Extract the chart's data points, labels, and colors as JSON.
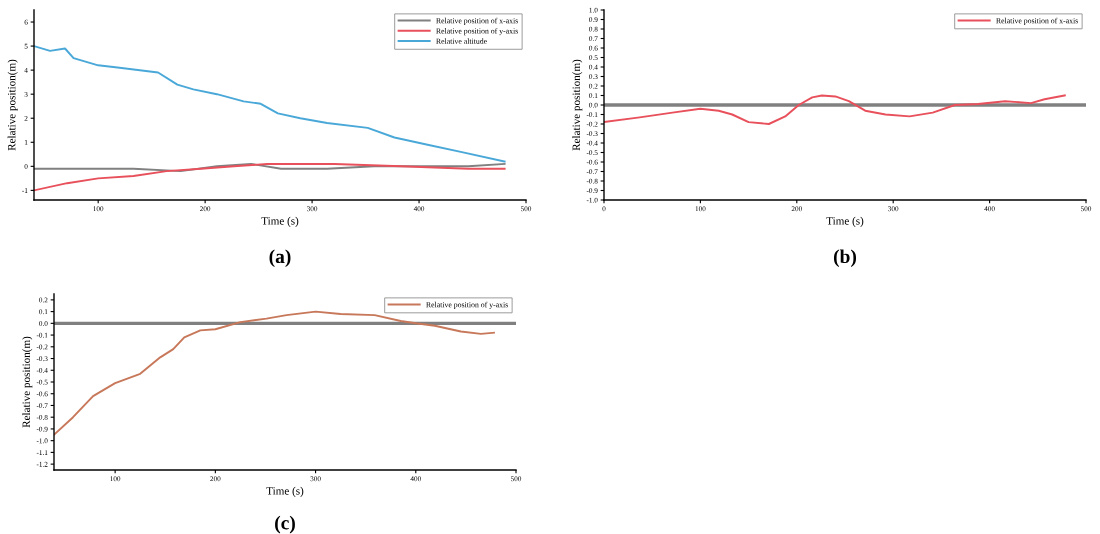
{
  "chart_data": [
    {
      "type": "line",
      "xlabel": "Time (s)",
      "ylabel": "Relative position(m)",
      "xlim": [
        40,
        500
      ],
      "xticks": [
        100,
        200,
        300,
        400,
        500
      ],
      "ylim": [
        -1.4,
        6.5
      ],
      "yticks": [
        -1,
        0,
        1,
        2,
        3,
        4,
        5,
        6
      ],
      "legend": "top right",
      "grid": false,
      "annotations": [
        "(a)"
      ],
      "series": [
        {
          "name": "Relative position of x-axis",
          "color": "#808080",
          "x": [
            40,
            100,
            133,
            177,
            211,
            243,
            271,
            314,
            358,
            402,
            446,
            480
          ],
          "values": [
            -0.1,
            -0.1,
            -0.1,
            -0.2,
            0,
            0.1,
            -0.1,
            -0.1,
            0,
            0,
            0.0,
            0.1
          ]
        },
        {
          "name": "Relative position of y-axis",
          "color": "#e8505b",
          "x": [
            40,
            71,
            100,
            133,
            164,
            196,
            227,
            258,
            321,
            383,
            446,
            480
          ],
          "values": [
            -1.0,
            -0.7,
            -0.5,
            -0.4,
            -0.2,
            -0.1,
            0.0,
            0.1,
            0.1,
            0.0,
            -0.1,
            -0.1
          ]
        },
        {
          "name": "Relative altitude",
          "color": "#4aa8d8",
          "x": [
            40,
            55,
            69,
            77,
            100,
            120,
            156,
            174,
            189,
            211,
            236,
            252,
            268,
            289,
            314,
            352,
            377,
            408,
            439,
            480
          ],
          "values": [
            5.0,
            4.8,
            4.9,
            4.5,
            4.2,
            4.1,
            3.9,
            3.4,
            3.2,
            3.0,
            2.7,
            2.6,
            2.2,
            2.0,
            1.8,
            1.6,
            1.2,
            0.9,
            0.6,
            0.2
          ]
        }
      ]
    },
    {
      "type": "line",
      "xlabel": "Time (s)",
      "ylabel": "Relative position(m)",
      "xlim": [
        0,
        500
      ],
      "xticks": [
        0,
        100,
        200,
        300,
        400,
        500
      ],
      "ylim": [
        -1.0,
        1.0
      ],
      "yticks": [
        {
          "value": 1.0,
          "label": "1.0"
        },
        0.9,
        0.8,
        0.7,
        0.6,
        0.5,
        0.4,
        0.3,
        0.2,
        0.1,
        {
          "value": 0,
          "label": "0.0"
        },
        -0.1,
        -0.2,
        -0.3,
        -0.4,
        -0.5,
        -0.6,
        -0.7,
        -0.8,
        -0.9,
        {
          "value": -1.0,
          "label": "-1.0"
        }
      ],
      "legend": "top right",
      "grid": false,
      "annotations": [
        "(b)"
      ],
      "ref_lines": [
        {
          "axis": "y",
          "value": 0,
          "color": "#808080"
        }
      ],
      "series": [
        {
          "name": "Relative position of x-axis",
          "color": "#e8505b",
          "x": [
            0,
            37,
            71,
            100,
            119,
            133,
            150,
            171,
            188,
            202,
            216,
            226,
            240,
            254,
            271,
            292,
            317,
            341,
            364,
            388,
            416,
            443,
            457,
            478
          ],
          "values": [
            -0.18,
            -0.13,
            -0.08,
            -0.04,
            -0.06,
            -0.1,
            -0.18,
            -0.2,
            -0.12,
            0.0,
            0.08,
            0.1,
            0.09,
            0.04,
            -0.06,
            -0.1,
            -0.12,
            -0.08,
            0,
            0.01,
            0.04,
            0.02,
            0.06,
            0.1
          ]
        }
      ]
    },
    {
      "type": "line",
      "xlabel": "Time (s)",
      "ylabel": "Relative position(m)",
      "xlim": [
        39,
        500
      ],
      "xticks": [
        100,
        200,
        300,
        400,
        500
      ],
      "ylim": [
        -1.25,
        0.25
      ],
      "yticks": [
        0.2,
        0.1,
        {
          "value": 0,
          "label": "0.0"
        },
        -0.1,
        -0.2,
        -0.3,
        -0.4,
        -0.5,
        -0.6,
        -0.7,
        -0.8,
        -0.9,
        {
          "value": -1.0,
          "label": "-1.0"
        },
        -1.1,
        -1.2
      ],
      "legend": "top right",
      "grid": false,
      "annotations": [
        "(c)"
      ],
      "ref_lines": [
        {
          "axis": "y",
          "value": 0,
          "color": "#808080"
        }
      ],
      "series": [
        {
          "name": "Relative position of y-axis",
          "color": "#c8785a",
          "x": [
            39,
            58,
            78,
            100,
            125,
            145,
            158,
            169,
            185,
            200,
            225,
            251,
            271,
            300,
            325,
            359,
            385,
            400,
            419,
            445,
            465,
            478
          ],
          "values": [
            -0.95,
            -0.8,
            -0.62,
            -0.51,
            -0.43,
            -0.29,
            -0.22,
            -0.12,
            -0.06,
            -0.05,
            0.01,
            0.04,
            0.07,
            0.1,
            0.08,
            0.07,
            0.02,
            0.0,
            -0.02,
            -0.07,
            -0.09,
            -0.08
          ]
        }
      ]
    }
  ]
}
